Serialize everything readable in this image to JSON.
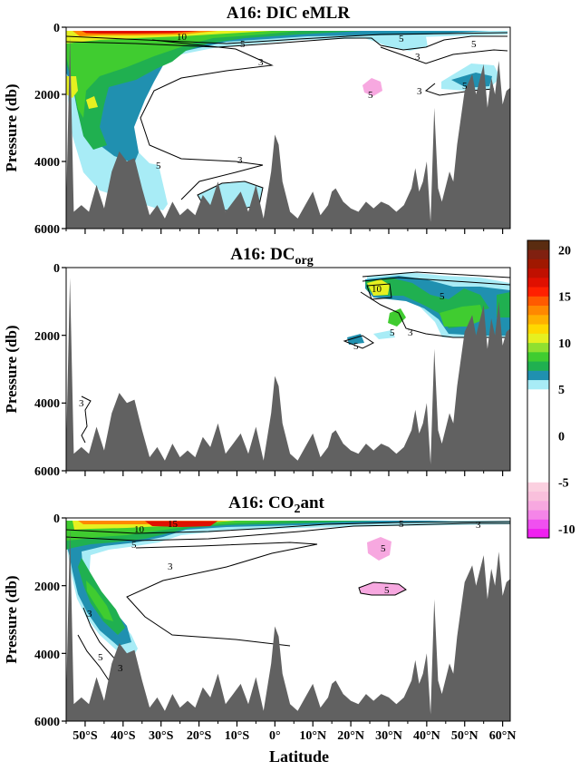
{
  "chart_data": [
    {
      "type": "contour",
      "title": "A16: DIC eMLR",
      "ylabel": "Pressure (db)",
      "xlabel": "",
      "xlim": [
        -55,
        62
      ],
      "ylim": [
        6000,
        0
      ],
      "yticks": [
        0,
        2000,
        4000,
        6000
      ],
      "contour_labels": [
        "10",
        "5",
        "3",
        "5",
        "3",
        "5",
        "3",
        "5",
        "3",
        "5",
        "5"
      ],
      "seafloor": [
        [
          -55,
          5400
        ],
        [
          -54,
          300
        ],
        [
          -53,
          5500
        ],
        [
          -51,
          5300
        ],
        [
          -49,
          5500
        ],
        [
          -47,
          4700
        ],
        [
          -45,
          5400
        ],
        [
          -43,
          4300
        ],
        [
          -41,
          3700
        ],
        [
          -39,
          4000
        ],
        [
          -37,
          3900
        ],
        [
          -35,
          4800
        ],
        [
          -33,
          5600
        ],
        [
          -31,
          5300
        ],
        [
          -29,
          5700
        ],
        [
          -27,
          5200
        ],
        [
          -25,
          5600
        ],
        [
          -23,
          5400
        ],
        [
          -21,
          5600
        ],
        [
          -19,
          5000
        ],
        [
          -17,
          5300
        ],
        [
          -15,
          4600
        ],
        [
          -13,
          5500
        ],
        [
          -11,
          5200
        ],
        [
          -9,
          4900
        ],
        [
          -7,
          5500
        ],
        [
          -5,
          4700
        ],
        [
          -3,
          5700
        ],
        [
          -1,
          4300
        ],
        [
          0,
          3200
        ],
        [
          1,
          3500
        ],
        [
          2,
          4600
        ],
        [
          4,
          5500
        ],
        [
          6,
          5700
        ],
        [
          8,
          5300
        ],
        [
          10,
          4900
        ],
        [
          12,
          5600
        ],
        [
          14,
          5300
        ],
        [
          15,
          4900
        ],
        [
          16,
          4800
        ],
        [
          18,
          5200
        ],
        [
          20,
          5400
        ],
        [
          22,
          5500
        ],
        [
          24,
          5200
        ],
        [
          26,
          5400
        ],
        [
          28,
          5200
        ],
        [
          30,
          5300
        ],
        [
          32,
          5500
        ],
        [
          34,
          5300
        ],
        [
          36,
          4800
        ],
        [
          37,
          4200
        ],
        [
          38,
          4900
        ],
        [
          39,
          4600
        ],
        [
          40,
          4000
        ],
        [
          41,
          5800
        ],
        [
          42,
          2400
        ],
        [
          43,
          4800
        ],
        [
          44,
          5200
        ],
        [
          46,
          4300
        ],
        [
          47,
          4600
        ],
        [
          48,
          3500
        ],
        [
          50,
          1900
        ],
        [
          52,
          1400
        ],
        [
          53,
          2000
        ],
        [
          55,
          1100
        ],
        [
          56,
          2400
        ],
        [
          57,
          1500
        ],
        [
          58,
          2000
        ],
        [
          59,
          1000
        ],
        [
          60,
          2300
        ],
        [
          61,
          1900
        ],
        [
          62,
          1800
        ]
      ]
    },
    {
      "type": "contour",
      "title": "A16: DC",
      "title_sub": "org",
      "ylabel": "Pressure (db)",
      "xlabel": "",
      "xlim": [
        -55,
        62
      ],
      "ylim": [
        6000,
        0
      ],
      "yticks": [
        0,
        2000,
        4000,
        6000
      ],
      "contour_labels": [
        "10",
        "5",
        "3",
        "5",
        "3",
        "5"
      ],
      "seafloor": [
        [
          -55,
          5400
        ],
        [
          -54,
          300
        ],
        [
          -53,
          5500
        ],
        [
          -51,
          5300
        ],
        [
          -49,
          5500
        ],
        [
          -47,
          4700
        ],
        [
          -45,
          5400
        ],
        [
          -43,
          4300
        ],
        [
          -41,
          3700
        ],
        [
          -39,
          4000
        ],
        [
          -37,
          3900
        ],
        [
          -35,
          4800
        ],
        [
          -33,
          5600
        ],
        [
          -31,
          5300
        ],
        [
          -29,
          5700
        ],
        [
          -27,
          5200
        ],
        [
          -25,
          5600
        ],
        [
          -23,
          5400
        ],
        [
          -21,
          5600
        ],
        [
          -19,
          5000
        ],
        [
          -17,
          5300
        ],
        [
          -15,
          4600
        ],
        [
          -13,
          5500
        ],
        [
          -11,
          5200
        ],
        [
          -9,
          4900
        ],
        [
          -7,
          5500
        ],
        [
          -5,
          4700
        ],
        [
          -3,
          5700
        ],
        [
          -1,
          4300
        ],
        [
          0,
          3200
        ],
        [
          1,
          3500
        ],
        [
          2,
          4600
        ],
        [
          4,
          5500
        ],
        [
          6,
          5700
        ],
        [
          8,
          5300
        ],
        [
          10,
          4900
        ],
        [
          12,
          5600
        ],
        [
          14,
          5300
        ],
        [
          15,
          4900
        ],
        [
          16,
          4800
        ],
        [
          18,
          5200
        ],
        [
          20,
          5400
        ],
        [
          22,
          5500
        ],
        [
          24,
          5200
        ],
        [
          26,
          5400
        ],
        [
          28,
          5200
        ],
        [
          30,
          5300
        ],
        [
          32,
          5500
        ],
        [
          34,
          5300
        ],
        [
          36,
          4800
        ],
        [
          37,
          4200
        ],
        [
          38,
          4900
        ],
        [
          39,
          4600
        ],
        [
          40,
          4000
        ],
        [
          41,
          5800
        ],
        [
          42,
          2400
        ],
        [
          43,
          4800
        ],
        [
          44,
          5200
        ],
        [
          46,
          4300
        ],
        [
          47,
          4600
        ],
        [
          48,
          3500
        ],
        [
          50,
          1900
        ],
        [
          52,
          1400
        ],
        [
          53,
          2000
        ],
        [
          55,
          1100
        ],
        [
          56,
          2400
        ],
        [
          57,
          1500
        ],
        [
          58,
          2000
        ],
        [
          59,
          1000
        ],
        [
          60,
          2300
        ],
        [
          61,
          1900
        ],
        [
          62,
          1800
        ]
      ]
    },
    {
      "type": "contour",
      "title": "A16: CO",
      "title_sub": "2",
      "title_suffix": "ant",
      "ylabel": "Pressure (db)",
      "xlabel": "Latitude",
      "xlim": [
        -55,
        62
      ],
      "ylim": [
        6000,
        0
      ],
      "yticks": [
        0,
        2000,
        4000,
        6000
      ],
      "xticks": [
        [
          "50°S",
          -50
        ],
        [
          "40°S",
          -40
        ],
        [
          "30°S",
          -30
        ],
        [
          "20°S",
          -20
        ],
        [
          "10°S",
          -10
        ],
        [
          "0°",
          0
        ],
        [
          "10°N",
          10
        ],
        [
          "20°N",
          20
        ],
        [
          "30°N",
          30
        ],
        [
          "40°N",
          40
        ],
        [
          "50°N",
          50
        ],
        [
          "60°N",
          60
        ]
      ],
      "contour_labels": [
        "10",
        "15",
        "5",
        "3",
        "5",
        "3",
        "3",
        "5",
        "3",
        "5",
        "5"
      ],
      "seafloor": [
        [
          -55,
          5400
        ],
        [
          -54,
          300
        ],
        [
          -53,
          5500
        ],
        [
          -51,
          5300
        ],
        [
          -49,
          5500
        ],
        [
          -47,
          4700
        ],
        [
          -45,
          5400
        ],
        [
          -43,
          4300
        ],
        [
          -41,
          3700
        ],
        [
          -39,
          4000
        ],
        [
          -37,
          3900
        ],
        [
          -35,
          4800
        ],
        [
          -33,
          5600
        ],
        [
          -31,
          5300
        ],
        [
          -29,
          5700
        ],
        [
          -27,
          5200
        ],
        [
          -25,
          5600
        ],
        [
          -23,
          5400
        ],
        [
          -21,
          5600
        ],
        [
          -19,
          5000
        ],
        [
          -17,
          5300
        ],
        [
          -15,
          4600
        ],
        [
          -13,
          5500
        ],
        [
          -11,
          5200
        ],
        [
          -9,
          4900
        ],
        [
          -7,
          5500
        ],
        [
          -5,
          4700
        ],
        [
          -3,
          5700
        ],
        [
          -1,
          4300
        ],
        [
          0,
          3200
        ],
        [
          1,
          3500
        ],
        [
          2,
          4600
        ],
        [
          4,
          5500
        ],
        [
          6,
          5700
        ],
        [
          8,
          5300
        ],
        [
          10,
          4900
        ],
        [
          12,
          5600
        ],
        [
          14,
          5300
        ],
        [
          15,
          4900
        ],
        [
          16,
          4800
        ],
        [
          18,
          5200
        ],
        [
          20,
          5400
        ],
        [
          22,
          5500
        ],
        [
          24,
          5200
        ],
        [
          26,
          5400
        ],
        [
          28,
          5200
        ],
        [
          30,
          5300
        ],
        [
          32,
          5500
        ],
        [
          34,
          5300
        ],
        [
          36,
          4800
        ],
        [
          37,
          4200
        ],
        [
          38,
          4900
        ],
        [
          39,
          4600
        ],
        [
          40,
          4000
        ],
        [
          41,
          5800
        ],
        [
          42,
          2400
        ],
        [
          43,
          4800
        ],
        [
          44,
          5200
        ],
        [
          46,
          4300
        ],
        [
          47,
          4600
        ],
        [
          48,
          3500
        ],
        [
          50,
          1900
        ],
        [
          52,
          1400
        ],
        [
          53,
          2000
        ],
        [
          55,
          1100
        ],
        [
          56,
          2400
        ],
        [
          57,
          1500
        ],
        [
          58,
          2000
        ],
        [
          59,
          1000
        ],
        [
          60,
          2300
        ],
        [
          61,
          1900
        ],
        [
          62,
          1800
        ]
      ]
    }
  ],
  "colorbar": {
    "ticks": [
      "20",
      "15",
      "10",
      "5",
      "0",
      "-5",
      "-10"
    ],
    "tick_values": [
      20,
      15,
      10,
      5,
      0,
      -5,
      -10
    ],
    "range": [
      -11,
      21
    ],
    "colors": [
      {
        "from": -11,
        "to": -10,
        "color": "#f020f0"
      },
      {
        "from": -10,
        "to": -9,
        "color": "#f050f0"
      },
      {
        "from": -9,
        "to": -8,
        "color": "#f585e8"
      },
      {
        "from": -8,
        "to": -7,
        "color": "#f7a8e0"
      },
      {
        "from": -7,
        "to": -6,
        "color": "#f9c0dc"
      },
      {
        "from": -6,
        "to": -5,
        "color": "#fbd0e0"
      },
      {
        "from": -5,
        "to": 5,
        "color": "#ffffff"
      },
      {
        "from": 5,
        "to": 6,
        "color": "#a8ecf6"
      },
      {
        "from": 6,
        "to": 7,
        "color": "#2090b0"
      },
      {
        "from": 7,
        "to": 8,
        "color": "#20b050"
      },
      {
        "from": 8,
        "to": 9,
        "color": "#40cc30"
      },
      {
        "from": 9,
        "to": 10,
        "color": "#90e030"
      },
      {
        "from": 10,
        "to": 11,
        "color": "#e6f020"
      },
      {
        "from": 11,
        "to": 12,
        "color": "#ffd800"
      },
      {
        "from": 12,
        "to": 13,
        "color": "#ffb000"
      },
      {
        "from": 13,
        "to": 14,
        "color": "#ff8800"
      },
      {
        "from": 14,
        "to": 15,
        "color": "#ff5a00"
      },
      {
        "from": 15,
        "to": 16,
        "color": "#ff2000"
      },
      {
        "from": 16,
        "to": 17,
        "color": "#e01000"
      },
      {
        "from": 17,
        "to": 18,
        "color": "#c01000"
      },
      {
        "from": 18,
        "to": 19,
        "color": "#a01800"
      },
      {
        "from": 19,
        "to": 20,
        "color": "#802010"
      },
      {
        "from": 20,
        "to": 21,
        "color": "#5a2c10"
      }
    ]
  },
  "colors": {
    "seafloor": "#616161",
    "level_5_7": "#a8ecf6",
    "level_7_8": "#2090b0",
    "level_8_9": "#20b050",
    "level_9_10": "#40cc30",
    "level_10_11": "#e6f020",
    "level_12_14": "#ff8800",
    "level_15_17": "#e01000",
    "negative_5": "#f7a8e0"
  }
}
